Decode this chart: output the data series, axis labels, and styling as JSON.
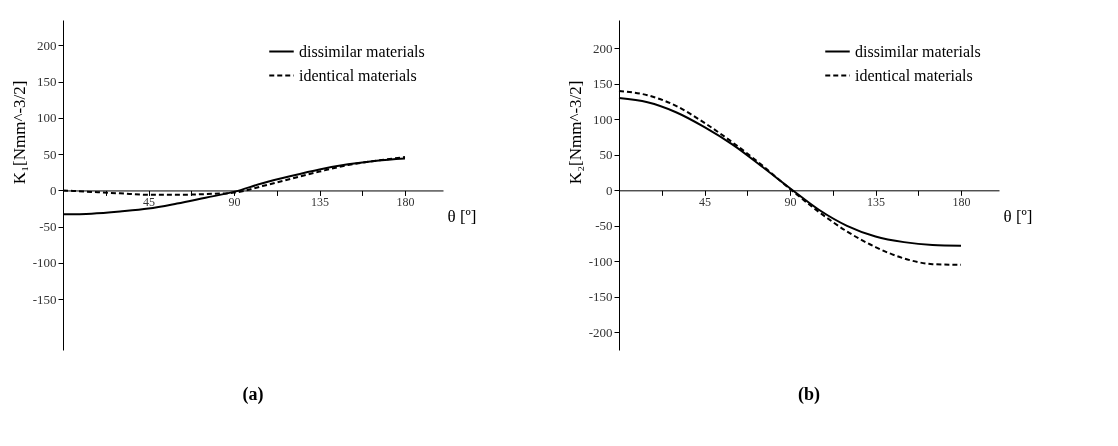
{
  "chart_data": [
    {
      "type": "line",
      "xlabel": "θ [º]",
      "ylabel": "K₁[Nmm^-3/2]",
      "annotations": [
        "(a)"
      ],
      "xlim": [
        0,
        200
      ],
      "ylim": [
        -220,
        235
      ],
      "xticks": [
        {
          "value": 22.5,
          "label": null
        },
        45,
        {
          "value": 67.5,
          "label": null
        },
        90,
        {
          "value": 112.5,
          "label": null
        },
        135,
        {
          "value": 157.5,
          "label": null
        },
        180
      ],
      "yticks": [
        -150,
        -100,
        -50,
        0,
        50,
        100,
        150,
        200
      ],
      "grid": false,
      "legend": "top right",
      "marker": "none",
      "x": [
        0,
        15,
        30,
        45,
        60,
        75,
        90,
        105,
        120,
        135,
        150,
        165,
        180
      ],
      "series": [
        {
          "name": "dissimilar materials",
          "color": "#000000",
          "line_style": "solid",
          "values": [
            -33,
            -32,
            -29,
            -25,
            -18,
            -10,
            -2,
            10,
            20,
            29,
            36,
            41,
            44
          ]
        },
        {
          "name": "identical materials",
          "color": "#000000",
          "line_style": "dashed",
          "values": [
            0,
            -2,
            -4,
            -6,
            -6,
            -5,
            -3,
            6,
            16,
            26,
            35,
            41,
            46
          ]
        }
      ]
    },
    {
      "type": "line",
      "xlabel": "θ [º]",
      "ylabel": "K₂[Nmm^-3/2]",
      "annotations": [
        "(b)"
      ],
      "xlim": [
        0,
        200
      ],
      "ylim": [
        -225,
        240
      ],
      "xticks": [
        {
          "value": 22.5,
          "label": null
        },
        45,
        {
          "value": 67.5,
          "label": null
        },
        90,
        {
          "value": 112.5,
          "label": null
        },
        135,
        {
          "value": 157.5,
          "label": null
        },
        180
      ],
      "yticks": [
        -200,
        -150,
        -100,
        -50,
        0,
        50,
        100,
        150,
        200
      ],
      "grid": false,
      "legend": "top right",
      "marker": "none",
      "x": [
        0,
        15,
        30,
        45,
        60,
        75,
        90,
        105,
        120,
        135,
        150,
        165,
        180
      ],
      "series": [
        {
          "name": "dissimilar materials",
          "color": "#000000",
          "line_style": "solid",
          "values": [
            130,
            124,
            110,
            89,
            64,
            34,
            3,
            -27,
            -50,
            -65,
            -73,
            -77,
            -78
          ]
        },
        {
          "name": "identical materials",
          "color": "#000000",
          "line_style": "dashed",
          "values": [
            140,
            134,
            119,
            95,
            67,
            36,
            2,
            -30,
            -58,
            -80,
            -96,
            -104,
            -105
          ]
        }
      ]
    }
  ]
}
